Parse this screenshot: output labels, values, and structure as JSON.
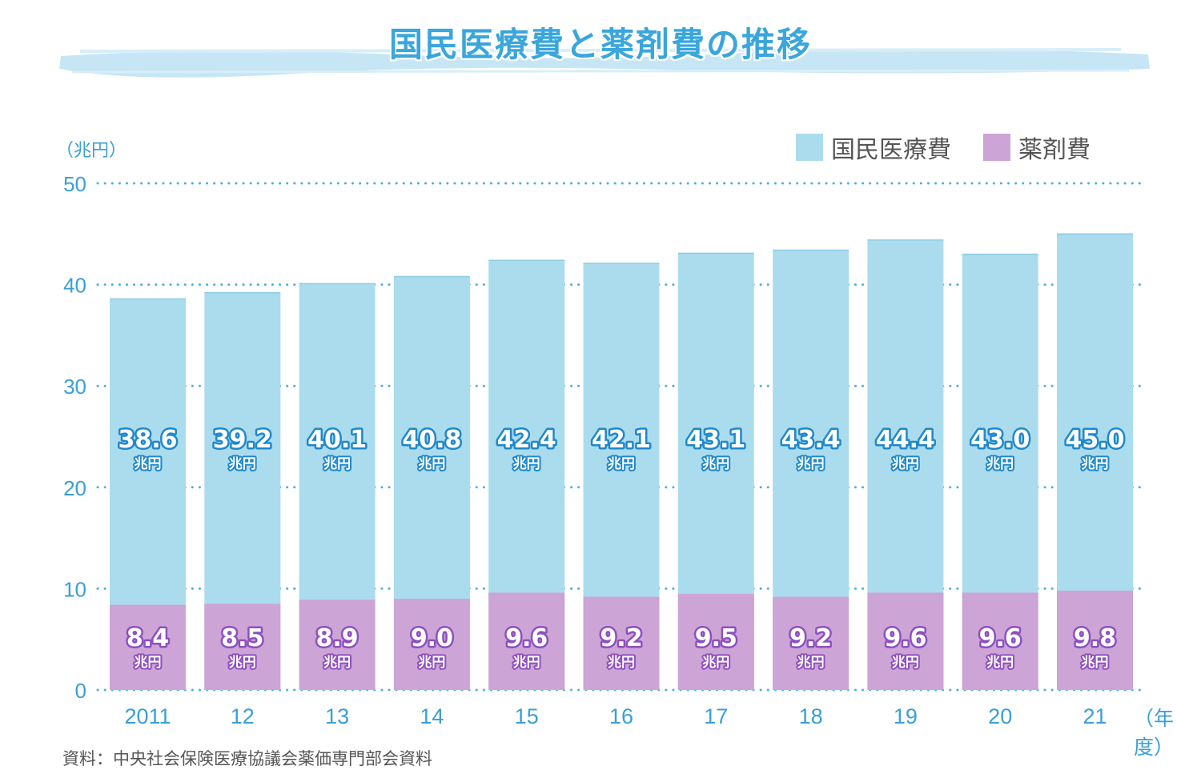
{
  "header": {
    "title": "国民医療費と薬剤費の推移",
    "unit": "（兆円）",
    "year_unit": "（年度）",
    "source": "資料：中央社会保険医療協議会薬価専門部会資料"
  },
  "colors": {
    "title": "#3aa6dc",
    "axis_text": "#3a9fd6",
    "grid_dots": "#4fb0dc",
    "medical": "#abdcee",
    "drug": "#cda4d6",
    "medical_label_outline": "#1e88cc",
    "drug_label_outline": "#8e4fc0",
    "title_band": "#c7e6f5"
  },
  "legend": [
    {
      "label": "国民医療費",
      "color": "#abdcee"
    },
    {
      "label": "薬剤費",
      "color": "#cda4d6"
    }
  ],
  "chart_data": {
    "type": "bar",
    "stacked": true,
    "categories": [
      "2011",
      "12",
      "13",
      "14",
      "15",
      "16",
      "17",
      "18",
      "19",
      "20",
      "21"
    ],
    "ylim": [
      0,
      50
    ],
    "yticks": [
      0,
      10,
      20,
      30,
      40,
      50
    ],
    "ylabel": "（兆円）",
    "xlabel": "（年度）",
    "grid": true,
    "legend_position": "top-right",
    "series": [
      {
        "name": "国民医療費",
        "values": [
          38.6,
          39.2,
          40.1,
          40.8,
          42.4,
          42.1,
          43.1,
          43.4,
          44.4,
          43.0,
          45.0
        ],
        "labels": [
          "38.6",
          "39.2",
          "40.1",
          "40.8",
          "42.4",
          "42.1",
          "43.1",
          "43.4",
          "44.4",
          "43.0",
          "45.0"
        ]
      },
      {
        "name": "薬剤費",
        "values": [
          8.4,
          8.5,
          8.9,
          9.0,
          9.6,
          9.2,
          9.5,
          9.2,
          9.6,
          9.6,
          9.8
        ],
        "labels": [
          "8.4",
          "8.5",
          "8.9",
          "9.0",
          "9.6",
          "9.2",
          "9.5",
          "9.2",
          "9.6",
          "9.6",
          "9.8"
        ]
      }
    ],
    "value_unit": "兆円",
    "note": "The medical-cost bar height shows the total national medical expenditure; drug cost is the lower segment within it."
  }
}
